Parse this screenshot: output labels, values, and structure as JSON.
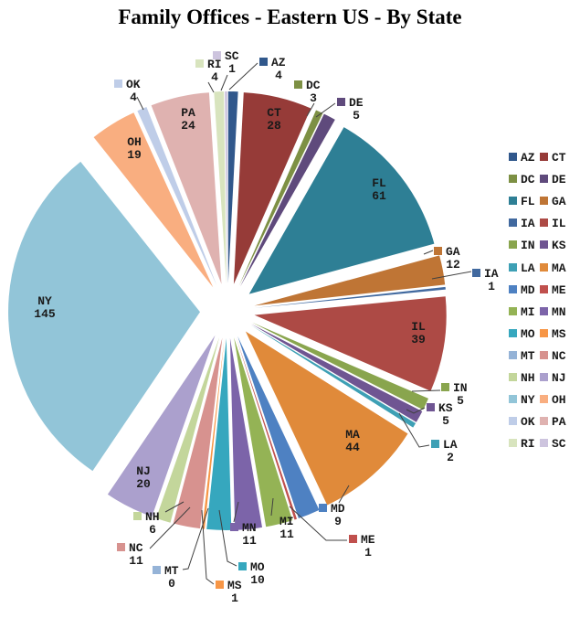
{
  "title": "Family Offices - Eastern US - By State",
  "chart_data": {
    "type": "pie",
    "title": "Family Offices - Eastern US - By State",
    "categories": [
      "AZ",
      "CT",
      "DC",
      "DE",
      "FL",
      "GA",
      "IA",
      "IL",
      "IN",
      "KS",
      "LA",
      "MA",
      "MD",
      "ME",
      "MI",
      "MN",
      "MO",
      "MS",
      "MT",
      "NC",
      "NH",
      "NJ",
      "NY",
      "OH",
      "OK",
      "PA",
      "RI",
      "SC"
    ],
    "values": [
      4,
      28,
      3,
      5,
      61,
      12,
      1,
      39,
      5,
      5,
      2,
      44,
      9,
      1,
      11,
      11,
      10,
      1,
      0,
      11,
      6,
      20,
      145,
      19,
      4,
      24,
      4,
      1
    ],
    "colors": [
      "#31588C",
      "#963B38",
      "#7D9044",
      "#5F4A7C",
      "#2E7F95",
      "#BF7535",
      "#41699F",
      "#AD4A45",
      "#89A54E",
      "#6F5592",
      "#3EA0B5",
      "#E08A3A",
      "#4E81C2",
      "#C0504D",
      "#94B355",
      "#7C64A9",
      "#36A7BE",
      "#F79646",
      "#95B3D7",
      "#D7928F",
      "#C3D69B",
      "#ABA0CD",
      "#92C5D8",
      "#F9AE80",
      "#BFCDE8",
      "#DFB2B0",
      "#D8E4BE",
      "#CDC4DE"
    ],
    "total": 486,
    "data_labels": "state code and value",
    "exploded": true,
    "start_angle": "12 o'clock, clockwise, alphabetical",
    "legend_position": "right",
    "legend_columns": 2,
    "legend_order": [
      "AZ",
      "CT",
      "DC",
      "DE",
      "FL",
      "GA",
      "IA",
      "IL",
      "IN",
      "KS",
      "LA",
      "MA",
      "MD",
      "ME",
      "MI",
      "MN",
      "MO",
      "MS",
      "MT",
      "NC",
      "NH",
      "NJ",
      "NY",
      "OH",
      "OK",
      "PA",
      "RI",
      "SC"
    ]
  }
}
